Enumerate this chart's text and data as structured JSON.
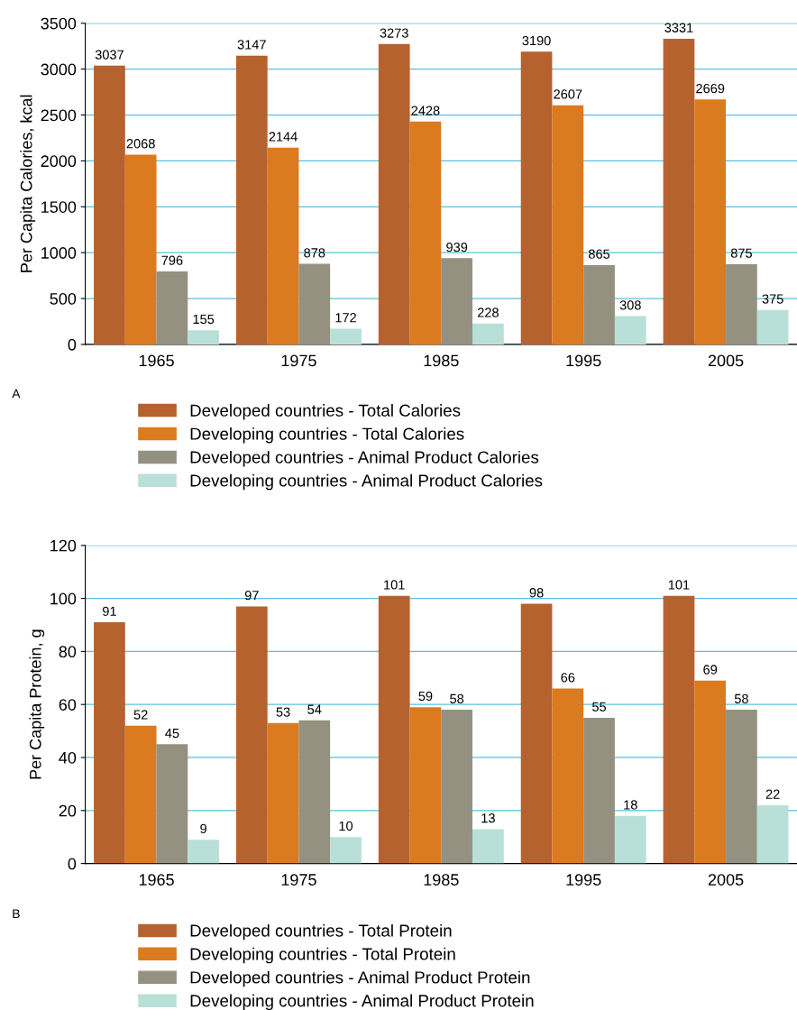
{
  "chart_data": [
    {
      "type": "bar",
      "ylabel": "Per Capita Calories, kcal",
      "categories": [
        "1965",
        "1975",
        "1985",
        "1995",
        "2005"
      ],
      "ylim": [
        0,
        3500
      ],
      "yticks": [
        0,
        500,
        1000,
        1500,
        2000,
        2500,
        3000,
        3500
      ],
      "grid": "y",
      "legend": "bottom",
      "data_labels": true,
      "annotations": [
        "A"
      ],
      "series": [
        {
          "name": "Developed countries - Total Calories",
          "color": "#b5622f",
          "values": [
            3037,
            3147,
            3273,
            3190,
            3331
          ]
        },
        {
          "name": "Developing countries - Total Calories",
          "color": "#dc7a1f",
          "values": [
            2068,
            2144,
            2428,
            2607,
            2669
          ]
        },
        {
          "name": "Developed countries - Animal Product Calories",
          "color": "#959180",
          "values": [
            796,
            878,
            939,
            865,
            875
          ]
        },
        {
          "name": "Developing countries - Animal Product Calories",
          "color": "#b9e0d8",
          "values": [
            155,
            172,
            228,
            308,
            375
          ]
        }
      ]
    },
    {
      "type": "bar",
      "ylabel": "Per Capita Protein, g",
      "categories": [
        "1965",
        "1975",
        "1985",
        "1995",
        "2005"
      ],
      "ylim": [
        0,
        120
      ],
      "yticks": [
        0,
        20,
        40,
        60,
        80,
        100,
        120
      ],
      "grid": "y",
      "legend": "bottom",
      "data_labels": true,
      "annotations": [
        "B"
      ],
      "series": [
        {
          "name": "Developed countries - Total Protein",
          "color": "#b5622f",
          "values": [
            91,
            97,
            101,
            98,
            101
          ]
        },
        {
          "name": "Developing countries - Total Protein",
          "color": "#dc7a1f",
          "values": [
            52,
            53,
            59,
            66,
            69
          ]
        },
        {
          "name": "Developed countries - Animal Product Protein",
          "color": "#959180",
          "values": [
            45,
            54,
            58,
            55,
            58
          ]
        },
        {
          "name": "Developing countries - Animal Product Protein",
          "color": "#b9e0d8",
          "values": [
            9,
            10,
            13,
            18,
            22
          ]
        }
      ]
    }
  ]
}
